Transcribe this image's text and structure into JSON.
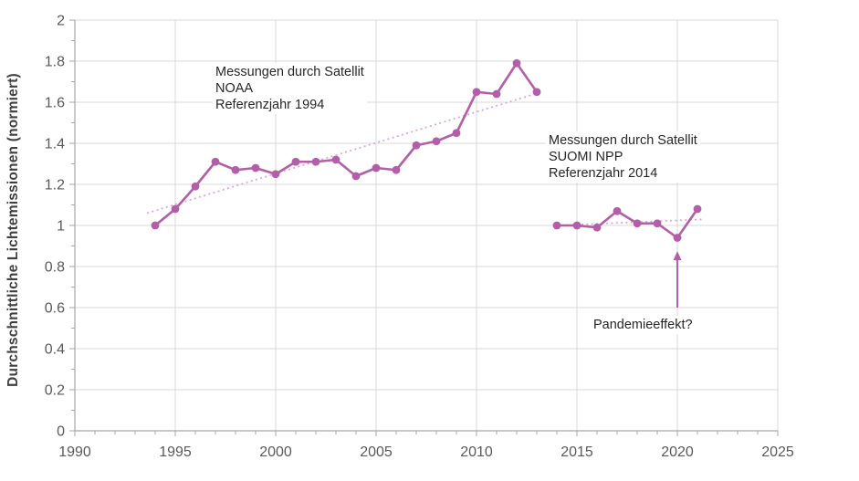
{
  "colors": {
    "series": "#B25EA8",
    "trendline": "#DCA6D4",
    "grid": "#D9D9D9",
    "axis": "#A6A6A6",
    "tick_label": "#595959",
    "annotation_text": "#262626",
    "axis_title": "#404040",
    "background": "#FFFFFF"
  },
  "chart_data": {
    "type": "line",
    "title": "",
    "xlabel": "",
    "ylabel": "Durchschnittliche Lichtemissionen (normiert)",
    "xlim": [
      1990,
      2025
    ],
    "ylim": [
      0,
      2
    ],
    "grid": "major gridlines horizontal (every 0.2) and vertical (every 5 years)",
    "legend": "none",
    "x_tick_values": [
      1990,
      1995,
      2000,
      2005,
      2010,
      2015,
      2020,
      2025
    ],
    "x_tick_labels": [
      "1990",
      "1995",
      "2000",
      "2005",
      "2010",
      "2015",
      "2020",
      "2025"
    ],
    "x_minor_tick_step": 1,
    "y_tick_values": [
      0,
      0.2,
      0.4,
      0.6,
      0.8,
      1,
      1.2,
      1.4,
      1.6,
      1.8,
      2
    ],
    "y_tick_labels": [
      "0",
      "0.2",
      "0.4",
      "0.6",
      "0.8",
      "1",
      "1.2",
      "1.4",
      "1.6",
      "1.8",
      "2"
    ],
    "y_minor_tick_step": 0.1,
    "series": [
      {
        "name": "NOAA",
        "x": [
          1994,
          1995,
          1996,
          1997,
          1998,
          1999,
          2000,
          2001,
          2002,
          2003,
          2004,
          2005,
          2006,
          2007,
          2008,
          2009,
          2010,
          2011,
          2012,
          2013
        ],
        "values": [
          1.0,
          1.08,
          1.19,
          1.31,
          1.27,
          1.28,
          1.25,
          1.31,
          1.31,
          1.32,
          1.24,
          1.28,
          1.27,
          1.39,
          1.41,
          1.45,
          1.65,
          1.64,
          1.79,
          1.65
        ]
      },
      {
        "name": "SUOMI NPP",
        "x": [
          2014,
          2015,
          2016,
          2017,
          2018,
          2019,
          2020,
          2021
        ],
        "values": [
          1.0,
          1.0,
          0.99,
          1.07,
          1.01,
          1.01,
          0.94,
          1.08
        ]
      }
    ],
    "trendlines": [
      {
        "series": "NOAA",
        "style": "dotted",
        "x": [
          1993.6,
          2012.9
        ],
        "values": [
          1.06,
          1.64
        ]
      },
      {
        "series": "SUOMI NPP",
        "style": "dotted",
        "x": [
          2014.0,
          2021.3
        ],
        "values": [
          1.0,
          1.03
        ]
      }
    ],
    "annotations": [
      {
        "id": "noaa",
        "lines": [
          "Messungen durch Satellit",
          "NOAA",
          "Referenzjahr 1994"
        ]
      },
      {
        "id": "suomi",
        "lines": [
          "Messungen durch Satellit",
          "SUOMI NPP",
          "Referenzjahr 2014"
        ]
      },
      {
        "id": "pandemic",
        "lines": [
          "Pandemieeffekt?"
        ]
      }
    ],
    "arrow": {
      "x": 2020,
      "value_from": 0.6,
      "value_to": 0.875,
      "points_to": "2020 data point"
    }
  }
}
